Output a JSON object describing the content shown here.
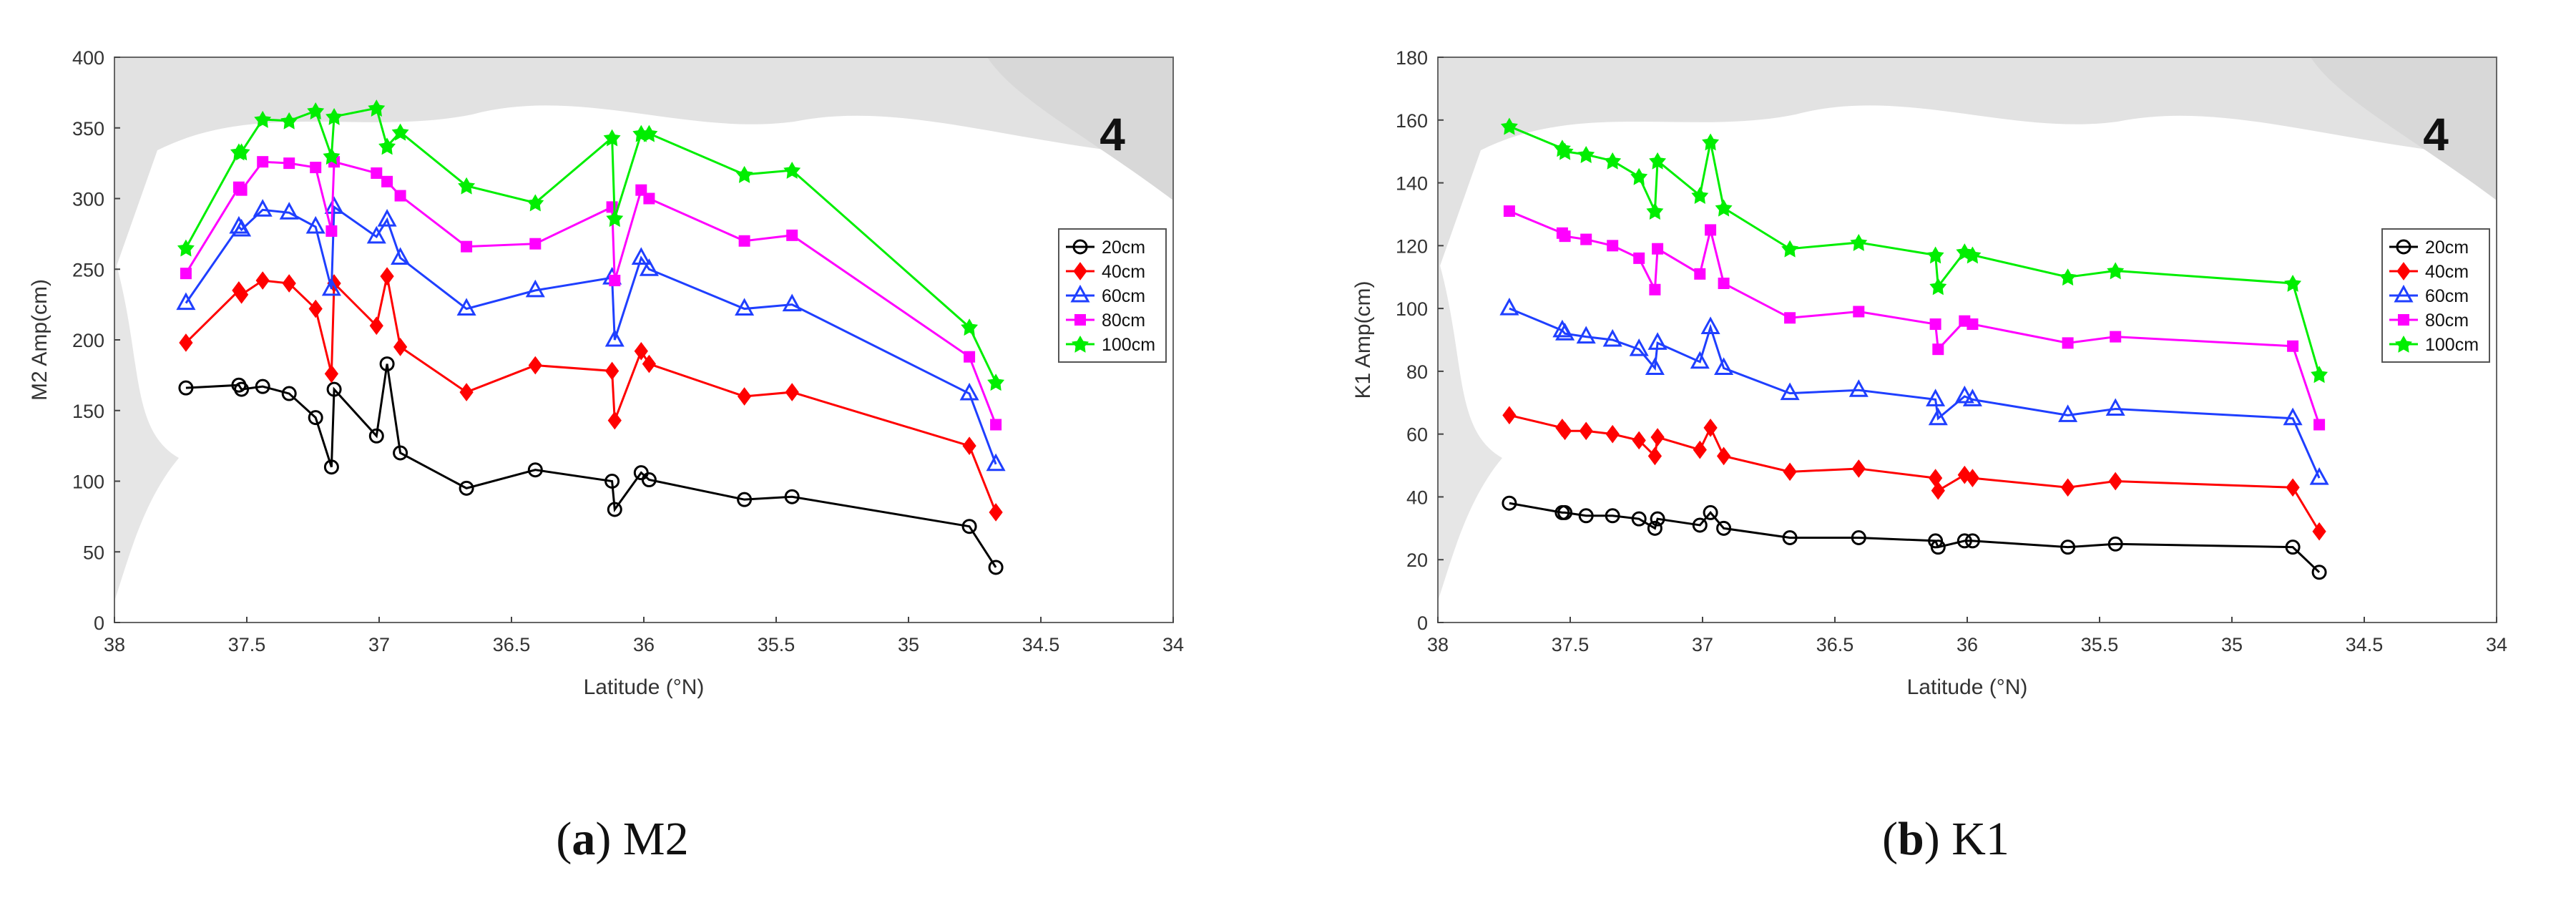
{
  "chart_data": [
    {
      "type": "line",
      "ylabel": "M2 Amp(cm)",
      "xlabel": "Latitude (°N)",
      "xlim": [
        38,
        34
      ],
      "ylim": [
        0,
        400
      ],
      "xticks": [
        38,
        37.5,
        37,
        36.5,
        36,
        35.5,
        35,
        34.5,
        34
      ],
      "yticks": [
        0,
        50,
        100,
        150,
        200,
        250,
        300,
        350,
        400
      ],
      "grid": false,
      "legend_position": "top-right",
      "inset_label": "4",
      "x": [
        37.73,
        37.53,
        37.52,
        37.44,
        37.34,
        37.24,
        37.18,
        37.17,
        37.01,
        36.97,
        36.92,
        36.67,
        36.41,
        36.12,
        36.11,
        36.01,
        35.98,
        35.62,
        35.44,
        34.77,
        34.67
      ],
      "series": [
        {
          "name": "20cm",
          "color": "#000000",
          "marker": "circle",
          "values": [
            166,
            168,
            165,
            167,
            162,
            145,
            110,
            165,
            132,
            183,
            120,
            95,
            108,
            100,
            80,
            106,
            101,
            87,
            89,
            68,
            39
          ]
        },
        {
          "name": "40cm",
          "color": "#ff0000",
          "marker": "diamond",
          "values": [
            198,
            235,
            232,
            242,
            240,
            222,
            176,
            240,
            210,
            245,
            195,
            163,
            182,
            178,
            143,
            192,
            183,
            160,
            163,
            125,
            78
          ]
        },
        {
          "name": "60cm",
          "color": "#1f3fff",
          "marker": "triangle",
          "values": [
            226,
            280,
            278,
            292,
            290,
            280,
            236,
            294,
            273,
            285,
            258,
            222,
            235,
            244,
            200,
            258,
            250,
            222,
            225,
            162,
            112
          ]
        },
        {
          "name": "80cm",
          "color": "#ff00ff",
          "marker": "square",
          "values": [
            247,
            308,
            306,
            326,
            325,
            322,
            277,
            326,
            318,
            312,
            302,
            266,
            268,
            294,
            242,
            306,
            300,
            270,
            274,
            188,
            140
          ]
        },
        {
          "name": "100cm",
          "color": "#00ee00",
          "marker": "star",
          "values": [
            265,
            333,
            333,
            356,
            355,
            362,
            330,
            358,
            364,
            337,
            347,
            309,
            297,
            343,
            286,
            346,
            346,
            317,
            320,
            209,
            170
          ]
        }
      ]
    },
    {
      "type": "line",
      "ylabel": "K1 Amp(cm)",
      "xlabel": "Latitude (°N)",
      "xlim": [
        38,
        34
      ],
      "ylim": [
        0,
        180
      ],
      "xticks": [
        38,
        37.5,
        37,
        36.5,
        36,
        35.5,
        35,
        34.5,
        34
      ],
      "yticks": [
        0,
        20,
        40,
        60,
        80,
        100,
        120,
        140,
        160,
        180
      ],
      "grid": false,
      "legend_position": "top-right",
      "inset_label": "4",
      "x": [
        37.73,
        37.53,
        37.52,
        37.44,
        37.34,
        37.24,
        37.18,
        37.17,
        37.01,
        36.97,
        36.92,
        36.67,
        36.41,
        36.12,
        36.11,
        36.01,
        35.98,
        35.62,
        35.44,
        34.77,
        34.67
      ],
      "series": [
        {
          "name": "20cm",
          "color": "#000000",
          "marker": "circle",
          "values": [
            38,
            35,
            35,
            34,
            34,
            33,
            30,
            33,
            31,
            35,
            30,
            27,
            27,
            26,
            24,
            26,
            26,
            24,
            25,
            24,
            16
          ]
        },
        {
          "name": "40cm",
          "color": "#ff0000",
          "marker": "diamond",
          "values": [
            66,
            62,
            61,
            61,
            60,
            58,
            53,
            59,
            55,
            62,
            53,
            48,
            49,
            46,
            42,
            47,
            46,
            43,
            45,
            43,
            29
          ]
        },
        {
          "name": "60cm",
          "color": "#1f3fff",
          "marker": "triangle",
          "values": [
            100,
            93,
            92,
            91,
            90,
            87,
            81,
            89,
            83,
            94,
            81,
            73,
            74,
            71,
            65,
            72,
            71,
            66,
            68,
            65,
            46
          ]
        },
        {
          "name": "80cm",
          "color": "#ff00ff",
          "marker": "square",
          "values": [
            131,
            124,
            123,
            122,
            120,
            116,
            106,
            119,
            111,
            125,
            108,
            97,
            99,
            95,
            87,
            96,
            95,
            89,
            91,
            88,
            63
          ]
        },
        {
          "name": "100cm",
          "color": "#00ee00",
          "marker": "star",
          "values": [
            158,
            151,
            150,
            149,
            147,
            142,
            131,
            147,
            136,
            153,
            132,
            119,
            121,
            117,
            107,
            118,
            117,
            110,
            112,
            108,
            79
          ]
        }
      ]
    }
  ],
  "captions": [
    {
      "letter": "a",
      "name": "M2"
    },
    {
      "letter": "b",
      "name": "K1"
    }
  ]
}
